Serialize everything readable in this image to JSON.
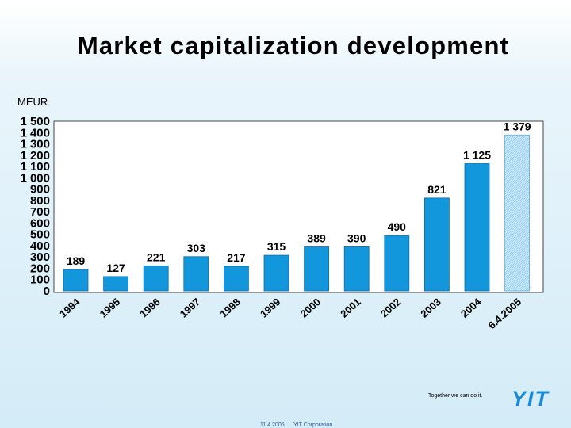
{
  "slide": {
    "title": "Market capitalization development",
    "unit": "MEUR",
    "tagline": "Together we can do it.",
    "logo_text": "YIT",
    "footer_date": "11.4.2005",
    "footer_org": "YIT Corporation"
  },
  "colors": {
    "bar": "#1296dc",
    "bar_highlight": "#bfe1f5",
    "logo": "#1b8ad6",
    "background": "#d4ecf8"
  },
  "chart_data": {
    "type": "bar",
    "title": "Market capitalization development",
    "ylabel": "MEUR",
    "xlabel": "",
    "ylim": [
      0,
      1500
    ],
    "grid": false,
    "yticks": [
      "0",
      "100",
      "200",
      "300",
      "400",
      "500",
      "600",
      "700",
      "800",
      "900",
      "1 000",
      "1 100",
      "1 200",
      "1 300",
      "1 400",
      "1 500"
    ],
    "categories": [
      "1994",
      "1995",
      "1996",
      "1997",
      "1998",
      "1999",
      "2000",
      "2001",
      "2002",
      "2003",
      "2004",
      "6.4.2005"
    ],
    "values": [
      189,
      127,
      221,
      303,
      217,
      315,
      389,
      390,
      490,
      821,
      1125,
      1379
    ],
    "labels": [
      "189",
      "127",
      "221",
      "303",
      "217",
      "315",
      "389",
      "390",
      "490",
      "821",
      "1 125",
      "1 379"
    ],
    "highlight_last": true
  }
}
